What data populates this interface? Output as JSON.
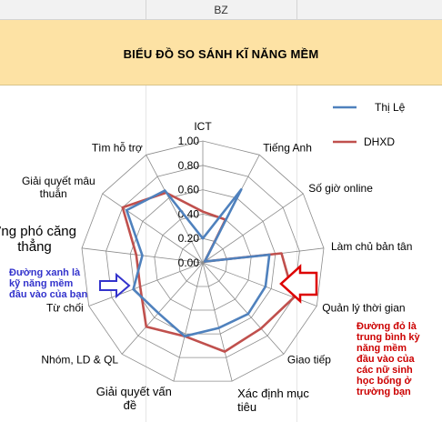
{
  "sheet": {
    "column_label": "BZ"
  },
  "chart_data": {
    "type": "radar",
    "title": "BIỂU ĐỒ SO SÁNH KĨ NĂNG MỀM",
    "axes": [
      "ICT",
      "Tiếng Anh",
      "Số giờ online",
      "Làm chủ bản tân",
      "Quản lý thời gian",
      "Giao tiếp",
      "Xác định mục tiêu",
      "Giải quyết vấn đề",
      "Nhóm, LD & QL",
      "Từ chối",
      "Ứng phó căng thẳng",
      "Giải quyết mâu thuẫn",
      "Tìm hỗ trợ"
    ],
    "rlim": [
      0,
      1
    ],
    "ticks": [
      "0.00",
      "0.20",
      "0.40",
      "0.60",
      "0.80",
      "1.00"
    ],
    "series": [
      {
        "name": "Thị Lệ",
        "color": "#4f81bd",
        "values": [
          0.2,
          0.68,
          0.02,
          0.55,
          0.55,
          0.56,
          0.55,
          0.62,
          0.55,
          0.61,
          0.5,
          0.76,
          0.67
        ]
      },
      {
        "name": "DHXD",
        "color": "#c0504d",
        "values": [
          0.42,
          0.4,
          0.02,
          0.65,
          0.8,
          0.72,
          0.75,
          0.62,
          0.7,
          0.55,
          0.55,
          0.8,
          0.65
        ]
      }
    ],
    "legend_position": "top-right",
    "annotations": [
      {
        "name": "blue-note",
        "color": "#3333cc",
        "lines": [
          "Đường xanh là",
          "kỹ năng mềm",
          "đầu vào của bạn"
        ]
      },
      {
        "name": "red-note",
        "color": "#cc0000",
        "lines": [
          "Đường đỏ là",
          "trung bình kỳ",
          "năng mềm",
          "đầu vào của",
          "các nữ sinh",
          "học bổng ở",
          "trường bạn"
        ]
      }
    ]
  }
}
